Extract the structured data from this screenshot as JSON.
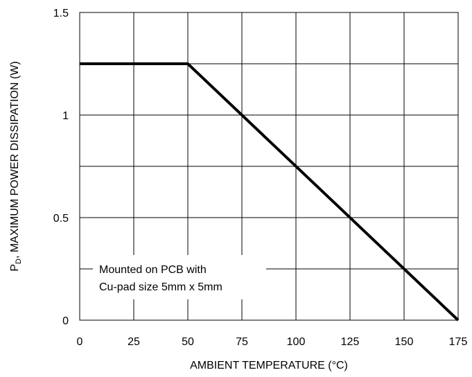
{
  "chart_data": {
    "type": "line",
    "title": "",
    "xlabel": "AMBIENT TEMPERATURE (°C)",
    "ylabel": {
      "prefix": "P",
      "subscript": "D",
      "rest": ", MAXIMUM POWER DISSIPATION (W)"
    },
    "xlim": [
      0,
      175
    ],
    "ylim": [
      0,
      1.5
    ],
    "xticks": [
      0,
      25,
      50,
      75,
      100,
      125,
      150,
      175
    ],
    "xtick_labels": [
      "0",
      "25",
      "50",
      "75",
      "100",
      "125",
      "150",
      "175"
    ],
    "yticks": [
      0,
      0.25,
      0.5,
      0.75,
      1,
      1.25,
      1.5
    ],
    "ytick_labels": [
      "0",
      "",
      "0.5",
      "",
      "1",
      "",
      "1.5"
    ],
    "grid": true,
    "series": [
      {
        "x": [
          0,
          50,
          175
        ],
        "y": [
          1.25,
          1.25,
          0
        ],
        "color": "#000000"
      }
    ],
    "annotation": {
      "lines": [
        "Mounted on PCB with",
        "Cu-pad size 5mm x 5mm"
      ]
    }
  }
}
